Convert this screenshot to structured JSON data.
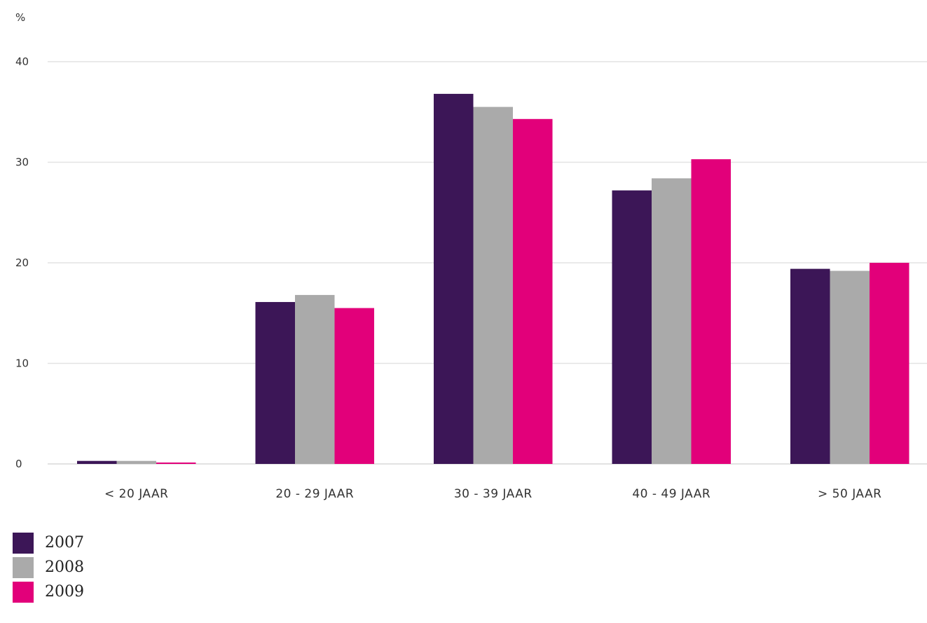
{
  "chart_data": {
    "type": "bar",
    "ylabel": "%",
    "ylim": [
      0,
      40
    ],
    "yticks": [
      0,
      10,
      20,
      30,
      40
    ],
    "grid": true,
    "legend_position": "bottom-left",
    "categories": [
      "< 20 JAAR",
      "20 - 29 JAAR",
      "30 - 39 JAAR",
      "40 - 49 JAAR",
      "> 50 JAAR"
    ],
    "series": [
      {
        "name": "2007",
        "color": "#3c1657",
        "values": [
          0.3,
          16.1,
          36.8,
          27.2,
          19.4
        ]
      },
      {
        "name": "2008",
        "color": "#aaaaaa",
        "values": [
          0.3,
          16.8,
          35.5,
          28.4,
          19.2
        ]
      },
      {
        "name": "2009",
        "color": "#e2007a",
        "values": [
          0.1,
          15.5,
          34.3,
          30.3,
          20.0
        ]
      }
    ]
  }
}
